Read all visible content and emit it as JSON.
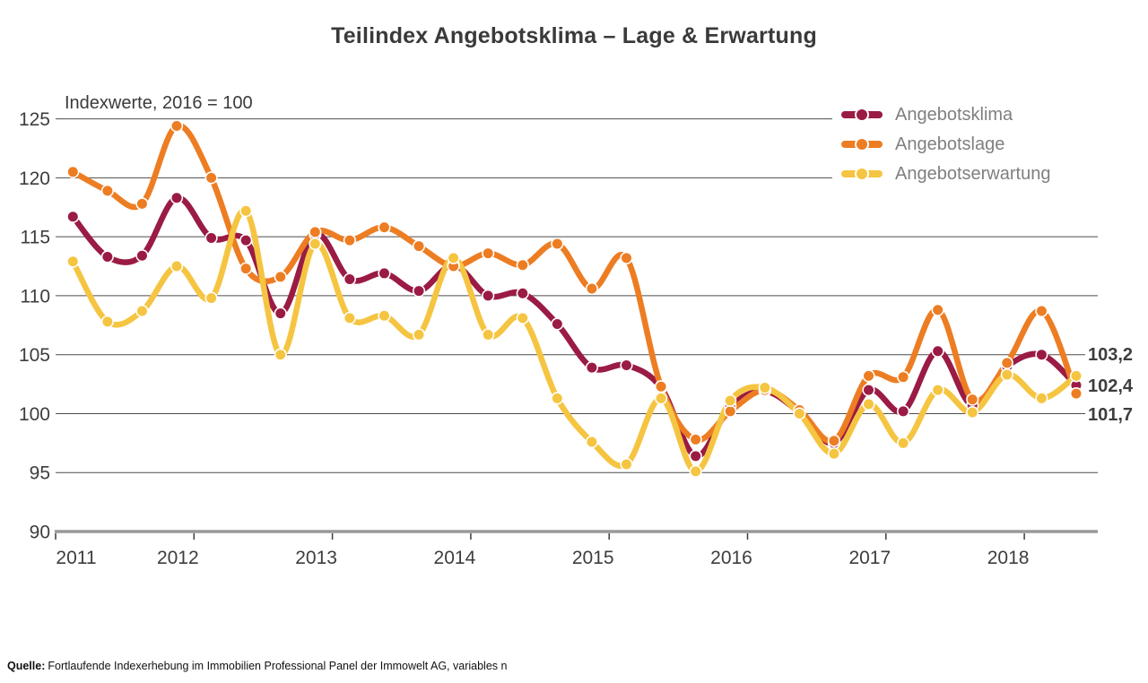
{
  "title": "Teilindex Angebotsklima – Lage & Erwartung",
  "subtitle": "Indexwerte, 2016 = 100",
  "source": {
    "label": "Quelle:",
    "text": "Fortlaufende Indexerhebung im Immobilien Professional Panel der Immowelt AG, variables n"
  },
  "chart_data": {
    "type": "line",
    "x_unit": "quarter",
    "x": [
      "2011 Q1",
      "2011 Q2",
      "2011 Q3",
      "2011 Q4",
      "2012 Q1",
      "2012 Q2",
      "2012 Q3",
      "2012 Q4",
      "2013 Q1",
      "2013 Q2",
      "2013 Q3",
      "2013 Q4",
      "2014 Q1",
      "2014 Q2",
      "2014 Q3",
      "2014 Q4",
      "2015 Q1",
      "2015 Q2",
      "2015 Q3",
      "2015 Q4",
      "2016 Q1",
      "2016 Q2",
      "2016 Q3",
      "2016 Q4",
      "2017 Q1",
      "2017 Q2",
      "2017 Q3",
      "2017 Q4",
      "2018 Q1",
      "2018 Q2"
    ],
    "year_labels": [
      "2011",
      "2012",
      "2013",
      "2014",
      "2015",
      "2016",
      "2017",
      "2018"
    ],
    "series": [
      {
        "name": "Angebotsklima",
        "color": "#9a1b44",
        "values": [
          116.7,
          113.3,
          113.4,
          118.3,
          114.9,
          114.7,
          108.5,
          115.2,
          111.4,
          111.9,
          110.4,
          112.6,
          110.0,
          110.2,
          107.6,
          103.9,
          104.1,
          102.2,
          96.4,
          100.6,
          101.9,
          100.1,
          97.5,
          102.0,
          100.2,
          105.3,
          100.7,
          104.0,
          105.0,
          102.4
        ]
      },
      {
        "name": "Angebotslage",
        "color": "#ed7d23",
        "values": [
          120.5,
          118.9,
          117.8,
          124.4,
          120.0,
          112.3,
          111.6,
          115.4,
          114.7,
          115.8,
          114.2,
          112.5,
          113.6,
          112.6,
          114.4,
          110.6,
          113.2,
          102.3,
          97.8,
          100.2,
          102.0,
          100.3,
          97.7,
          103.2,
          103.1,
          108.8,
          101.2,
          104.3,
          108.7,
          101.7
        ]
      },
      {
        "name": "Angebotserwartung",
        "color": "#f5c542",
        "values": [
          112.9,
          107.8,
          108.7,
          112.5,
          109.8,
          117.2,
          105.0,
          114.4,
          108.1,
          108.3,
          106.7,
          113.2,
          106.7,
          108.1,
          101.3,
          97.6,
          95.7,
          101.3,
          95.1,
          101.1,
          102.2,
          100.0,
          96.6,
          100.8,
          97.5,
          102.0,
          100.1,
          103.3,
          101.3,
          103.2
        ]
      }
    ],
    "end_labels": [
      "103,2",
      "102,4",
      "101,7"
    ],
    "ylim": [
      90,
      125
    ],
    "yticks": [
      90,
      95,
      100,
      105,
      110,
      115,
      120,
      125
    ],
    "grid": true,
    "legend_position": "top-right"
  }
}
